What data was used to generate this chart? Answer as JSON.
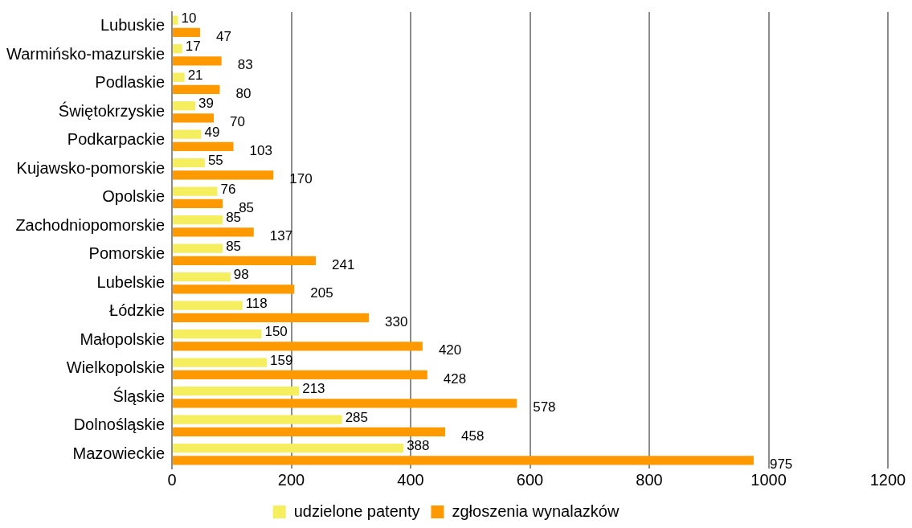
{
  "chart_data": {
    "type": "bar",
    "orientation": "horizontal",
    "categories": [
      "Lubuskie",
      "Warmińsko-mazurskie",
      "Podlaskie",
      "Świętokrzyskie",
      "Podkarpackie",
      "Kujawsko-pomorskie",
      "Opolskie",
      "Zachodniopomorskie",
      "Pomorskie",
      "Lubelskie",
      "Łódzkie",
      "Małopolskie",
      "Wielkopolskie",
      "Śląskie",
      "Dolnośląskie",
      "Mazowieckie"
    ],
    "series": [
      {
        "name": "udzielone patenty",
        "color": "#f5ee5f",
        "values": [
          10,
          17,
          21,
          39,
          49,
          55,
          76,
          85,
          85,
          98,
          118,
          150,
          159,
          213,
          285,
          388
        ]
      },
      {
        "name": "zgłoszenia wynalazków",
        "color": "#ff9900",
        "values": [
          47,
          83,
          80,
          70,
          103,
          170,
          85,
          137,
          241,
          205,
          330,
          420,
          428,
          578,
          458,
          975
        ]
      }
    ],
    "xlim": [
      0,
      1200
    ],
    "xticks": [
      0,
      200,
      400,
      600,
      800,
      1000,
      1200
    ],
    "grid": "x",
    "data_labels": true,
    "legend": "bottom"
  }
}
